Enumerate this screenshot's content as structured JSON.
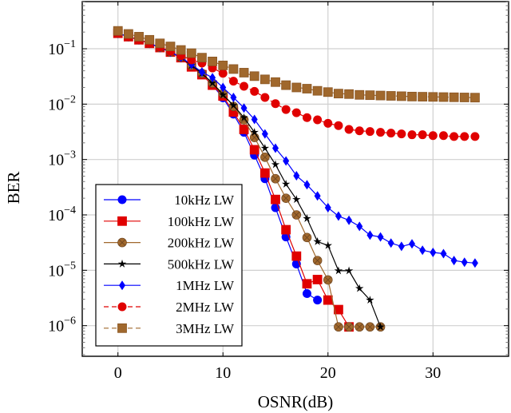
{
  "chart_data": {
    "type": "line",
    "title": "",
    "xlabel": "OSNR(dB)",
    "ylabel": "BER",
    "xlim": [
      -3.4,
      37.2
    ],
    "ylim": [
      2.8e-07,
      0.71
    ],
    "yscale": "log",
    "grid": true,
    "legend_position": "bottom-left",
    "xticks": [
      0,
      10,
      20,
      30
    ],
    "xtick_labels": [
      "0",
      "10",
      "20",
      "30"
    ],
    "yticks": [
      -1,
      -2,
      -3,
      -4,
      -5,
      -6
    ],
    "ytick_labels": [
      {
        "base": "10",
        "exp": "−1"
      },
      {
        "base": "10",
        "exp": "−2"
      },
      {
        "base": "10",
        "exp": "−3"
      },
      {
        "base": "10",
        "exp": "−4"
      },
      {
        "base": "10",
        "exp": "−5"
      },
      {
        "base": "10",
        "exp": "−6"
      }
    ],
    "series": [
      {
        "name": "10kHz LW",
        "color": "#0000ff",
        "marker": "circle",
        "dash": false,
        "x": [
          0,
          1,
          2,
          3,
          4,
          5,
          6,
          7,
          8,
          9,
          10,
          11,
          12,
          13,
          14,
          15,
          16,
          17,
          18,
          19
        ],
        "y": [
          0.19,
          0.165,
          0.145,
          0.125,
          0.105,
          0.087,
          0.068,
          0.048,
          0.034,
          0.022,
          0.013,
          0.0066,
          0.0031,
          0.0012,
          0.00045,
          0.000135,
          4e-05,
          1.3e-05,
          3.8e-06,
          2.9e-06
        ]
      },
      {
        "name": "100kHz LW",
        "color": "#e00000",
        "marker": "square",
        "dash": false,
        "x": [
          0,
          1,
          2,
          3,
          4,
          5,
          6,
          7,
          8,
          9,
          10,
          11,
          12,
          13,
          14,
          15,
          16,
          17,
          18,
          19,
          20,
          21,
          22
        ],
        "y": [
          0.19,
          0.165,
          0.145,
          0.125,
          0.105,
          0.087,
          0.069,
          0.047,
          0.034,
          0.022,
          0.014,
          0.0072,
          0.0035,
          0.0015,
          0.00057,
          0.00019,
          5.4e-05,
          1.8e-05,
          5.7e-06,
          6.8e-06,
          2.9e-06,
          1.95e-06,
          9.5e-07
        ]
      },
      {
        "name": "200kHz LW",
        "color": "#a0682d",
        "marker": "otimes",
        "dash": false,
        "x": [
          0,
          1,
          2,
          3,
          4,
          5,
          6,
          7,
          8,
          9,
          10,
          11,
          12,
          13,
          14,
          15,
          16,
          17,
          18,
          19,
          20,
          21,
          22,
          23,
          24,
          25
        ],
        "y": [
          0.19,
          0.165,
          0.145,
          0.125,
          0.105,
          0.087,
          0.07,
          0.05,
          0.036,
          0.024,
          0.0155,
          0.0091,
          0.0052,
          0.0025,
          0.0011,
          0.00045,
          0.0002,
          0.0001,
          3.9e-05,
          1.5e-05,
          6.7e-06,
          9.5e-07,
          9.5e-07,
          9.5e-07,
          9.5e-07,
          9.5e-07
        ]
      },
      {
        "name": "500kHz LW",
        "color": "#000000",
        "marker": "star",
        "dash": false,
        "x": [
          0,
          1,
          2,
          3,
          4,
          5,
          6,
          7,
          8,
          9,
          10,
          11,
          12,
          13,
          14,
          15,
          16,
          17,
          18,
          19,
          20,
          21,
          22,
          23,
          24,
          25
        ],
        "y": [
          0.19,
          0.165,
          0.145,
          0.125,
          0.105,
          0.087,
          0.07,
          0.05,
          0.036,
          0.024,
          0.0147,
          0.0095,
          0.0057,
          0.0031,
          0.0016,
          0.00081,
          0.00036,
          0.00019,
          8.6e-05,
          3.3e-05,
          2.8e-05,
          9.8e-06,
          9.8e-06,
          4.7e-06,
          2.9e-06,
          9.5e-07
        ]
      },
      {
        "name": "1MHz LW",
        "color": "#0000ff",
        "marker": "diamond",
        "dash": false,
        "x": [
          0,
          1,
          2,
          3,
          4,
          5,
          6,
          7,
          8,
          9,
          10,
          11,
          12,
          13,
          14,
          15,
          16,
          17,
          18,
          19,
          20,
          21,
          22,
          23,
          24,
          25,
          26,
          27,
          28,
          29,
          30,
          31,
          32,
          33,
          34
        ],
        "y": [
          0.19,
          0.165,
          0.145,
          0.125,
          0.105,
          0.087,
          0.07,
          0.052,
          0.038,
          0.03,
          0.02,
          0.0132,
          0.0085,
          0.0053,
          0.0029,
          0.0016,
          0.00094,
          0.00051,
          0.00035,
          0.00022,
          0.000135,
          9.5e-05,
          8e-05,
          6.2e-05,
          4.3e-05,
          4e-05,
          3.1e-05,
          2.7e-05,
          3e-05,
          2.3e-05,
          2.1e-05,
          2e-05,
          1.5e-05,
          1.4e-05,
          1.35e-05
        ]
      },
      {
        "name": "2MHz LW",
        "color": "#e00000",
        "marker": "circle",
        "dash": true,
        "x": [
          0,
          1,
          2,
          3,
          4,
          5,
          6,
          7,
          8,
          9,
          10,
          11,
          12,
          13,
          14,
          15,
          16,
          17,
          18,
          19,
          20,
          21,
          22,
          23,
          24,
          25,
          26,
          27,
          28,
          29,
          30,
          31,
          32,
          33,
          34
        ],
        "y": [
          0.19,
          0.165,
          0.145,
          0.125,
          0.107,
          0.09,
          0.075,
          0.063,
          0.055,
          0.045,
          0.036,
          0.026,
          0.021,
          0.017,
          0.0132,
          0.0102,
          0.008,
          0.007,
          0.0057,
          0.0052,
          0.0045,
          0.0041,
          0.0035,
          0.0033,
          0.0032,
          0.0031,
          0.003,
          0.0029,
          0.0028,
          0.0028,
          0.0027,
          0.0027,
          0.0026,
          0.0026,
          0.0026
        ]
      },
      {
        "name": "3MHz LW",
        "color": "#a0682d",
        "marker": "square",
        "dash": true,
        "x": [
          0,
          1,
          2,
          3,
          4,
          5,
          6,
          7,
          8,
          9,
          10,
          11,
          12,
          13,
          14,
          15,
          16,
          17,
          18,
          19,
          20,
          21,
          22,
          23,
          24,
          25,
          26,
          27,
          28,
          29,
          30,
          31,
          32,
          33,
          34
        ],
        "y": [
          0.21,
          0.185,
          0.165,
          0.145,
          0.125,
          0.11,
          0.095,
          0.083,
          0.069,
          0.059,
          0.05,
          0.043,
          0.037,
          0.032,
          0.028,
          0.025,
          0.022,
          0.02,
          0.019,
          0.0174,
          0.0165,
          0.0155,
          0.0152,
          0.0147,
          0.0145,
          0.0143,
          0.0141,
          0.0139,
          0.0137,
          0.0136,
          0.0135,
          0.0134,
          0.0133,
          0.0132,
          0.0131
        ]
      }
    ]
  }
}
